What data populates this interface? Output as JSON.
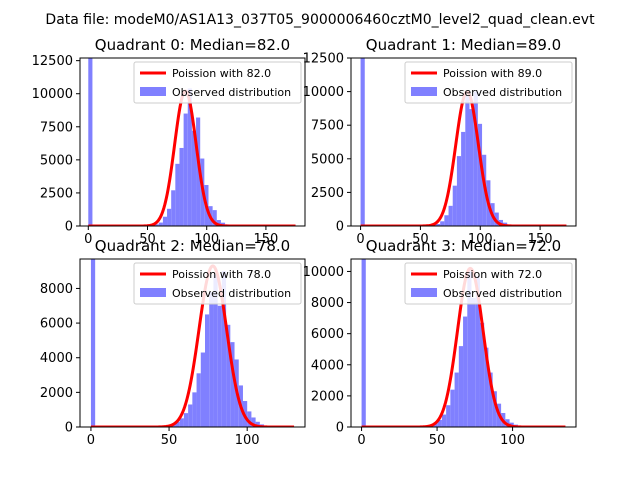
{
  "figure": {
    "suptitle": "Data file: modeM0/AS1A13_037T05_9000006460cztM0_level2_quad_clean.evt",
    "colors": {
      "background": "#ffffff",
      "text": "#000000",
      "poisson_line": "#ff0000",
      "observed_bars": "#8080ff"
    }
  },
  "chart_data": [
    {
      "type": "bar",
      "title": "Quadrant 0: Median=82.0",
      "xlabel": "",
      "ylabel": "",
      "grid": false,
      "legend_position": "top-right",
      "xlim": [
        -7,
        183
      ],
      "ylim": [
        0,
        12700
      ],
      "xticks": [
        0,
        50,
        100,
        150
      ],
      "xtick_labels": [
        "0",
        "50",
        "100",
        "150"
      ],
      "yticks": [
        0,
        2500,
        5000,
        7500,
        10000,
        12500
      ],
      "ytick_labels": [
        "0",
        "2500",
        "5000",
        "7500",
        "10000",
        "12500"
      ],
      "series": [
        {
          "name": "Observed distribution",
          "kind": "histogram",
          "bin_width": 3.5,
          "bins": [
            {
              "x": 0,
              "y": 12700
            },
            {
              "x": 52.5,
              "y": 70
            },
            {
              "x": 56,
              "y": 130
            },
            {
              "x": 59.5,
              "y": 260
            },
            {
              "x": 63,
              "y": 700
            },
            {
              "x": 66.5,
              "y": 1300
            },
            {
              "x": 70,
              "y": 2700
            },
            {
              "x": 73.5,
              "y": 4700
            },
            {
              "x": 77,
              "y": 5900
            },
            {
              "x": 80.5,
              "y": 8500
            },
            {
              "x": 84,
              "y": 10400
            },
            {
              "x": 87.5,
              "y": 7200
            },
            {
              "x": 91,
              "y": 8200
            },
            {
              "x": 94.5,
              "y": 5100
            },
            {
              "x": 98,
              "y": 3100
            },
            {
              "x": 101.5,
              "y": 1500
            },
            {
              "x": 105,
              "y": 1200
            },
            {
              "x": 108.5,
              "y": 450
            },
            {
              "x": 112,
              "y": 250
            },
            {
              "x": 115.5,
              "y": 120
            },
            {
              "x": 119,
              "y": 60
            }
          ]
        },
        {
          "name": "Poission with 82.0",
          "kind": "poisson",
          "lambda": 82.0,
          "peak": 10200,
          "x_range": [
            0,
            175
          ]
        }
      ]
    },
    {
      "type": "bar",
      "title": "Quadrant 1: Median=89.0",
      "xlabel": "",
      "ylabel": "",
      "grid": false,
      "legend_position": "top-right",
      "xlim": [
        -8,
        180
      ],
      "ylim": [
        0,
        12500
      ],
      "xticks": [
        0,
        50,
        100,
        150
      ],
      "xtick_labels": [
        "0",
        "50",
        "100",
        "150"
      ],
      "yticks": [
        0,
        2500,
        5000,
        7500,
        10000,
        12500
      ],
      "ytick_labels": [
        "0",
        "2500",
        "5000",
        "7500",
        "10000",
        "12500"
      ],
      "series": [
        {
          "name": "Observed distribution",
          "kind": "histogram",
          "bin_width": 3.5,
          "bins": [
            {
              "x": 0,
              "y": 12500
            },
            {
              "x": 59.5,
              "y": 80
            },
            {
              "x": 63,
              "y": 150
            },
            {
              "x": 66.5,
              "y": 350
            },
            {
              "x": 70,
              "y": 800
            },
            {
              "x": 73.5,
              "y": 1500
            },
            {
              "x": 77,
              "y": 3000
            },
            {
              "x": 80.5,
              "y": 5200
            },
            {
              "x": 84,
              "y": 7000
            },
            {
              "x": 87.5,
              "y": 9700
            },
            {
              "x": 91,
              "y": 8700
            },
            {
              "x": 94.5,
              "y": 10000
            },
            {
              "x": 98,
              "y": 7600
            },
            {
              "x": 101.5,
              "y": 5300
            },
            {
              "x": 105,
              "y": 3400
            },
            {
              "x": 108.5,
              "y": 1700
            },
            {
              "x": 112,
              "y": 1000
            },
            {
              "x": 115.5,
              "y": 450
            },
            {
              "x": 119,
              "y": 250
            },
            {
              "x": 122.5,
              "y": 100
            },
            {
              "x": 126,
              "y": 50
            }
          ]
        },
        {
          "name": "Poission with 89.0",
          "kind": "poisson",
          "lambda": 89.0,
          "peak": 10000,
          "x_range": [
            0,
            172
          ]
        }
      ]
    },
    {
      "type": "bar",
      "title": "Quadrant 2: Median=78.0",
      "xlabel": "",
      "ylabel": "",
      "grid": false,
      "legend_position": "top-right",
      "xlim": [
        -7,
        137
      ],
      "ylim": [
        0,
        9700
      ],
      "xticks": [
        0,
        50,
        100
      ],
      "xtick_labels": [
        "0",
        "50",
        "100"
      ],
      "yticks": [
        0,
        2000,
        4000,
        6000,
        8000
      ],
      "ytick_labels": [
        "0",
        "2000",
        "4000",
        "6000",
        "8000"
      ],
      "series": [
        {
          "name": "Observed distribution",
          "kind": "histogram",
          "bin_width": 2.7,
          "bins": [
            {
              "x": 0,
              "y": 9700
            },
            {
              "x": 46,
              "y": 40
            },
            {
              "x": 48.7,
              "y": 80
            },
            {
              "x": 51.4,
              "y": 150
            },
            {
              "x": 54.1,
              "y": 300
            },
            {
              "x": 56.8,
              "y": 500
            },
            {
              "x": 59.5,
              "y": 800
            },
            {
              "x": 62.2,
              "y": 1300
            },
            {
              "x": 64.9,
              "y": 2000
            },
            {
              "x": 67.6,
              "y": 3100
            },
            {
              "x": 70.3,
              "y": 4300
            },
            {
              "x": 73,
              "y": 6500
            },
            {
              "x": 75.7,
              "y": 7800
            },
            {
              "x": 78.4,
              "y": 8800
            },
            {
              "x": 81.1,
              "y": 7000
            },
            {
              "x": 83.8,
              "y": 9000
            },
            {
              "x": 86.5,
              "y": 5900
            },
            {
              "x": 89.2,
              "y": 4900
            },
            {
              "x": 91.9,
              "y": 3900
            },
            {
              "x": 94.6,
              "y": 2400
            },
            {
              "x": 97.3,
              "y": 1500
            },
            {
              "x": 100,
              "y": 900
            },
            {
              "x": 102.7,
              "y": 550
            },
            {
              "x": 105.4,
              "y": 300
            },
            {
              "x": 108.1,
              "y": 150
            },
            {
              "x": 110.8,
              "y": 70
            }
          ]
        },
        {
          "name": "Poission with 78.0",
          "kind": "poisson",
          "lambda": 78.0,
          "peak": 9300,
          "x_range": [
            0,
            130
          ]
        }
      ]
    },
    {
      "type": "bar",
      "title": "Quadrant 3: Median=72.0",
      "xlabel": "",
      "ylabel": "",
      "grid": false,
      "legend_position": "top-right",
      "xlim": [
        -7,
        142
      ],
      "ylim": [
        0,
        10800
      ],
      "xticks": [
        0,
        50,
        100
      ],
      "xtick_labels": [
        "0",
        "50",
        "100"
      ],
      "yticks": [
        0,
        2000,
        4000,
        6000,
        8000,
        10000
      ],
      "ytick_labels": [
        "0",
        "2000",
        "4000",
        "6000",
        "8000",
        "10000"
      ],
      "series": [
        {
          "name": "Observed distribution",
          "kind": "histogram",
          "bin_width": 2.8,
          "bins": [
            {
              "x": 0,
              "y": 10800
            },
            {
              "x": 42,
              "y": 60
            },
            {
              "x": 44.8,
              "y": 120
            },
            {
              "x": 47.6,
              "y": 250
            },
            {
              "x": 50.4,
              "y": 450
            },
            {
              "x": 53.2,
              "y": 800
            },
            {
              "x": 56,
              "y": 1400
            },
            {
              "x": 58.8,
              "y": 2400
            },
            {
              "x": 61.6,
              "y": 3500
            },
            {
              "x": 64.4,
              "y": 5200
            },
            {
              "x": 67.2,
              "y": 7100
            },
            {
              "x": 70,
              "y": 10000
            },
            {
              "x": 72.8,
              "y": 8300
            },
            {
              "x": 75.6,
              "y": 9700
            },
            {
              "x": 78.4,
              "y": 6700
            },
            {
              "x": 81.2,
              "y": 5100
            },
            {
              "x": 84,
              "y": 3500
            },
            {
              "x": 86.8,
              "y": 2300
            },
            {
              "x": 89.6,
              "y": 1500
            },
            {
              "x": 92.4,
              "y": 900
            },
            {
              "x": 95.2,
              "y": 500
            },
            {
              "x": 98,
              "y": 280
            },
            {
              "x": 100.8,
              "y": 150
            },
            {
              "x": 103.6,
              "y": 70
            }
          ]
        },
        {
          "name": "Poission with 72.0",
          "kind": "poisson",
          "lambda": 72.0,
          "peak": 10200,
          "x_range": [
            0,
            135
          ]
        }
      ]
    }
  ]
}
